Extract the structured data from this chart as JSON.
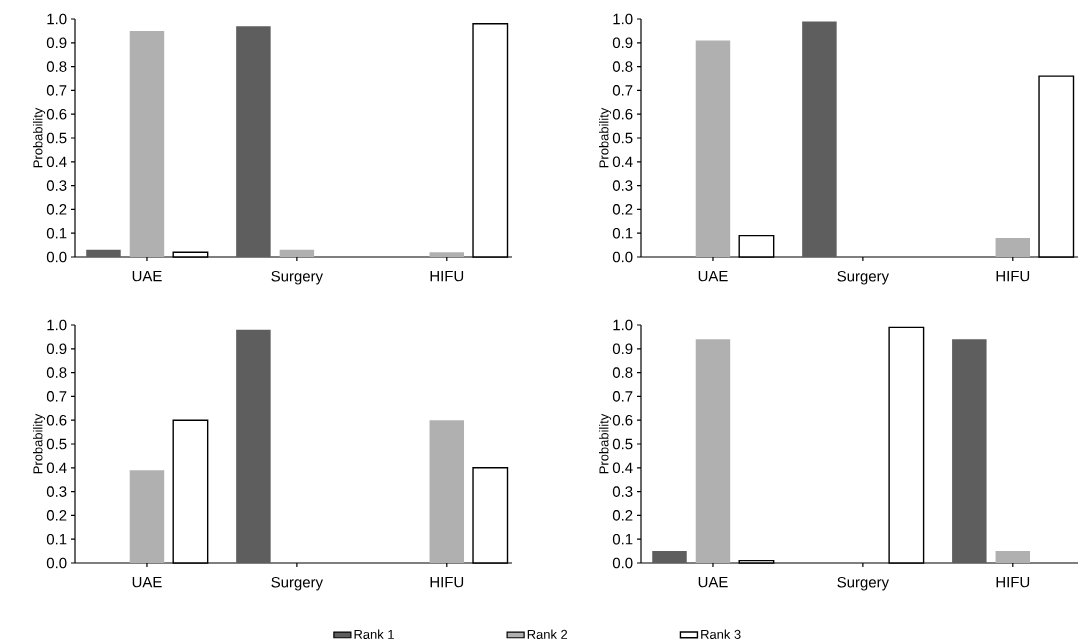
{
  "chart_data": [
    {
      "type": "bar",
      "categories": [
        "UAE",
        "Surgery",
        "HIFU"
      ],
      "ylabel": "Probability",
      "ylim": [
        0,
        1
      ],
      "yticks": [
        {
          "value": 0,
          "label": "0.0"
        },
        {
          "value": 0.1,
          "label": "0.1"
        },
        {
          "value": 0.2,
          "label": "0.2"
        },
        {
          "value": 0.3,
          "label": "0.3"
        },
        {
          "value": 0.4,
          "label": "0.4"
        },
        {
          "value": 0.5,
          "label": "0.5"
        },
        {
          "value": 0.6,
          "label": "0.6"
        },
        {
          "value": 0.7,
          "label": "0.7"
        },
        {
          "value": 0.8,
          "label": "0.8"
        },
        {
          "value": 0.9,
          "label": "0.9"
        },
        {
          "value": 1,
          "label": "1.0"
        }
      ],
      "series": [
        {
          "color": "#5e5e5e",
          "values": [
            0.03,
            0.97,
            0.0
          ]
        },
        {
          "color": "#b0b0b0",
          "values": [
            0.95,
            0.03,
            0.02
          ]
        },
        {
          "color": "#ffffff",
          "values": [
            0.02,
            0.0,
            0.98
          ]
        }
      ]
    },
    {
      "type": "bar",
      "categories": [
        "UAE",
        "Surgery",
        "HIFU"
      ],
      "ylabel": "Probability",
      "ylim": [
        0,
        1
      ],
      "yticks": [
        {
          "value": 0,
          "label": "0.0"
        },
        {
          "value": 0.1,
          "label": "0.1"
        },
        {
          "value": 0.2,
          "label": "0.2"
        },
        {
          "value": 0.3,
          "label": "0.3"
        },
        {
          "value": 0.4,
          "label": "0.4"
        },
        {
          "value": 0.5,
          "label": "0.5"
        },
        {
          "value": 0.6,
          "label": "0.6"
        },
        {
          "value": 0.7,
          "label": "0.7"
        },
        {
          "value": 0.8,
          "label": "0.8"
        },
        {
          "value": 0.9,
          "label": "0.9"
        },
        {
          "value": 1,
          "label": "1.0"
        }
      ],
      "series": [
        {
          "color": "#5e5e5e",
          "values": [
            0.0,
            0.99,
            0.0
          ]
        },
        {
          "color": "#b0b0b0",
          "values": [
            0.91,
            0.0,
            0.08
          ]
        },
        {
          "color": "#ffffff",
          "values": [
            0.09,
            0.0,
            0.76
          ]
        }
      ]
    },
    {
      "type": "bar",
      "categories": [
        "UAE",
        "Surgery",
        "HIFU"
      ],
      "ylabel": "Probability",
      "ylim": [
        0,
        1
      ],
      "legend": "bottom",
      "yticks": [
        {
          "value": 0,
          "label": "0.0"
        },
        {
          "value": 0.1,
          "label": "0.1"
        },
        {
          "value": 0.2,
          "label": "0.2"
        },
        {
          "value": 0.3,
          "label": "0.3"
        },
        {
          "value": 0.4,
          "label": "0.4"
        },
        {
          "value": 0.5,
          "label": "0.5"
        },
        {
          "value": 0.6,
          "label": "0.6"
        },
        {
          "value": 0.7,
          "label": "0.7"
        },
        {
          "value": 0.8,
          "label": "0.8"
        },
        {
          "value": 0.9,
          "label": "0.9"
        },
        {
          "value": 1,
          "label": "1.0"
        }
      ],
      "series": [
        {
          "name": "Rank 1",
          "color": "#5e5e5e",
          "values": [
            0.0,
            0.98,
            0.0
          ]
        },
        {
          "name": "Rank 2",
          "color": "#b0b0b0",
          "values": [
            0.39,
            0.0,
            0.6
          ]
        },
        {
          "name": "Rank 3",
          "color": "#ffffff",
          "values": [
            0.6,
            0.0,
            0.4
          ]
        }
      ]
    },
    {
      "type": "bar",
      "categories": [
        "UAE",
        "Surgery",
        "HIFU"
      ],
      "ylabel": "Probability",
      "ylim": [
        0,
        1
      ],
      "yticks": [
        {
          "value": 0,
          "label": "0.0"
        },
        {
          "value": 0.1,
          "label": "0.1"
        },
        {
          "value": 0.2,
          "label": "0.2"
        },
        {
          "value": 0.3,
          "label": "0.3"
        },
        {
          "value": 0.4,
          "label": "0.4"
        },
        {
          "value": 0.5,
          "label": "0.5"
        },
        {
          "value": 0.6,
          "label": "0.6"
        },
        {
          "value": 0.7,
          "label": "0.7"
        },
        {
          "value": 0.8,
          "label": "0.8"
        },
        {
          "value": 0.9,
          "label": "0.9"
        },
        {
          "value": 1,
          "label": "1.0"
        }
      ],
      "series": [
        {
          "color": "#5e5e5e",
          "values": [
            0.05,
            0.0,
            0.94
          ]
        },
        {
          "color": "#b0b0b0",
          "values": [
            0.94,
            0.0,
            0.05
          ]
        },
        {
          "color": "#ffffff",
          "values": [
            0.01,
            0.99,
            0.0
          ]
        }
      ]
    }
  ]
}
